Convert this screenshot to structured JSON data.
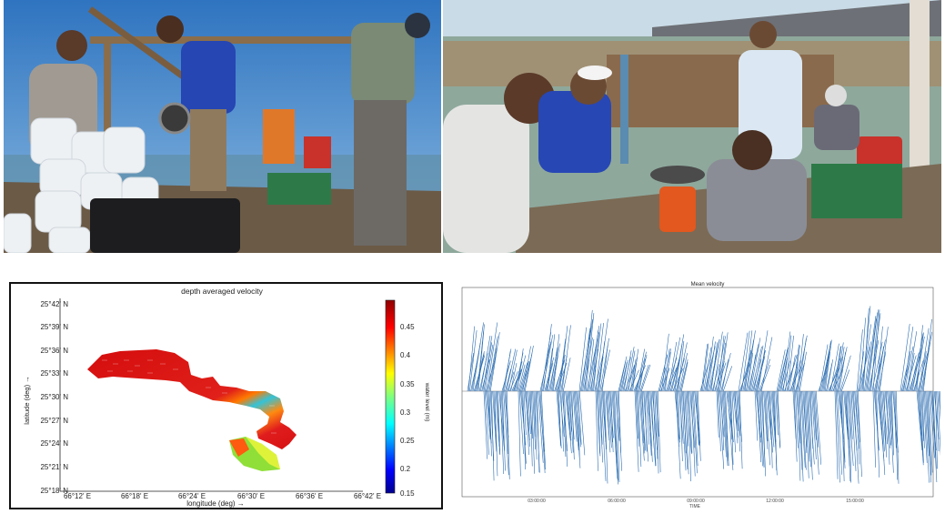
{
  "map_panel": {
    "title": "depth averaged velocity",
    "xlabel": "longitude (deg) →",
    "ylabel": "latitude (deg) →",
    "colorbar_label": "water level (m)",
    "x_ticks": [
      "66°12' E",
      "66°18' E",
      "66°24' E",
      "66°30' E",
      "66°36' E",
      "66°42' E"
    ],
    "y_ticks": [
      "25°42' N",
      "25°39' N",
      "25°36' N",
      "25°33' N",
      "25°30' N",
      "25°27' N",
      "25°24' N",
      "25°21' N",
      "25°18' N"
    ],
    "colorbar_ticks": [
      "0.45",
      "0.4",
      "0.35",
      "0.3",
      "0.25",
      "0.2",
      "0.15"
    ]
  },
  "velocity_panel": {
    "title": "Mean velocity",
    "xlabel": "TIME",
    "x_ticks": [
      "03:00:00",
      "06:00:00",
      "09:00:00",
      "12:00:00",
      "15:00:00"
    ]
  },
  "colors": {
    "stick": "#2b6cb0",
    "sky": "#4f90cf",
    "sea": "#6fa6c6"
  },
  "chart_data": [
    {
      "type": "heatmap",
      "title": "depth averaged velocity",
      "xlabel": "longitude (deg) →",
      "ylabel": "latitude (deg) →",
      "x_ticks": [
        "66°12' E",
        "66°18' E",
        "66°24' E",
        "66°30' E",
        "66°36' E",
        "66°42' E"
      ],
      "y_ticks": [
        "25°42' N",
        "25°39' N",
        "25°36' N",
        "25°33' N",
        "25°30' N",
        "25°27' N",
        "25°24' N",
        "25°21' N",
        "25°18' N"
      ],
      "colorbar": {
        "label": "water level (m)",
        "range": [
          0.15,
          0.49
        ],
        "colormap": "jet"
      }
    },
    {
      "type": "line",
      "title": "Mean velocity",
      "xlabel": "TIME",
      "x_ticks": [
        "03:00:00",
        "06:00:00",
        "09:00:00",
        "12:00:00",
        "15:00:00"
      ],
      "grid": false
    }
  ]
}
